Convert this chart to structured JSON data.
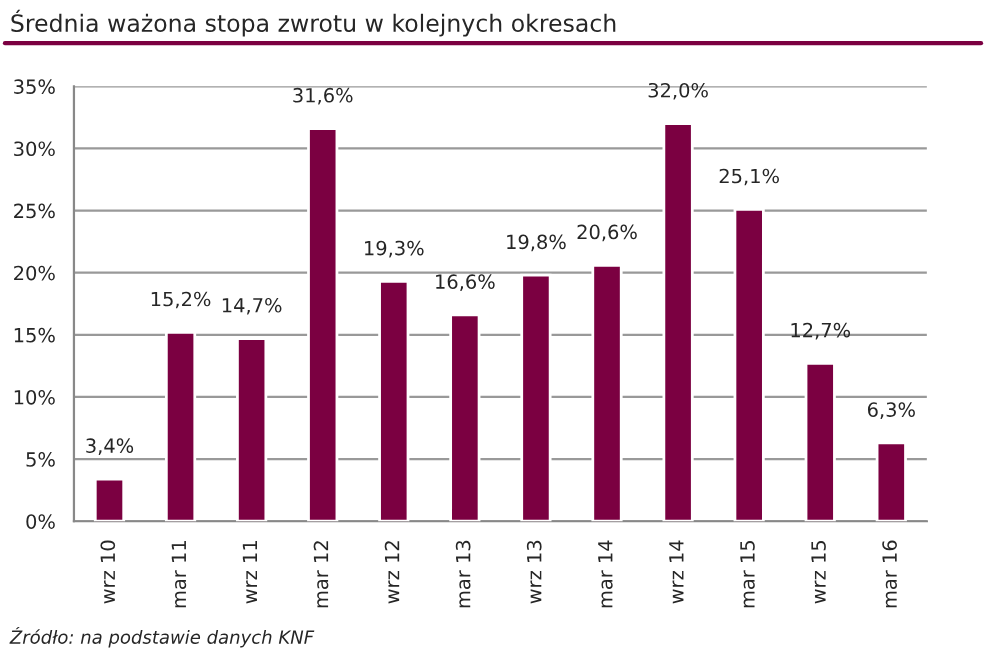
{
  "chart_data": {
    "type": "bar",
    "title": "Średnia ważona stopa zwrotu w kolejnych okresach",
    "categories": [
      "wrz 10",
      "mar 11",
      "wrz 11",
      "mar 12",
      "wrz 12",
      "mar 13",
      "wrz 13",
      "mar 14",
      "wrz 14",
      "mar 15",
      "wrz 15",
      "mar 16"
    ],
    "values": [
      3.4,
      15.2,
      14.7,
      31.6,
      19.3,
      16.6,
      19.8,
      20.6,
      32.0,
      25.1,
      12.7,
      6.3
    ],
    "value_labels": [
      "3,4%",
      "15,2%",
      "14,7%",
      "31,6%",
      "19,3%",
      "16,6%",
      "19,8%",
      "20,6%",
      "32,0%",
      "25,1%",
      "12,7%",
      "6,3%"
    ],
    "color": "#7b0041",
    "ylim": [
      0,
      35
    ],
    "yticks": [
      {
        "value": 0,
        "label": "0%"
      },
      {
        "value": 5,
        "label": "5%"
      },
      {
        "value": 10,
        "label": "10%"
      },
      {
        "value": 15,
        "label": "15%"
      },
      {
        "value": 20,
        "label": "20%"
      },
      {
        "value": 25,
        "label": "25%"
      },
      {
        "value": 30,
        "label": "30%"
      },
      {
        "value": 35,
        "label": "35%"
      }
    ],
    "grid": "y",
    "annotations": [
      "Źródło: na podstawie danych KNF"
    ]
  }
}
